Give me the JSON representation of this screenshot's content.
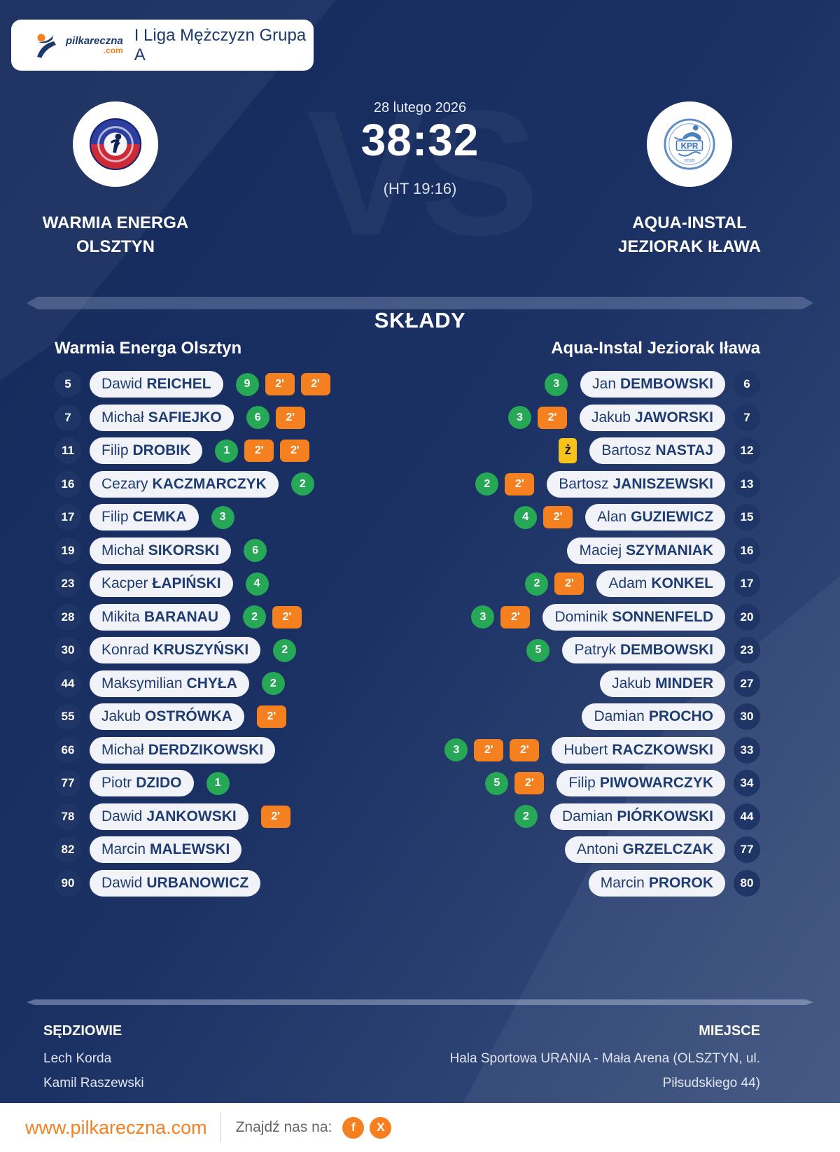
{
  "header": {
    "logo_text": "pilkareczna",
    "logo_tld": ".com",
    "league": "I Liga Mężczyzn Grupa A"
  },
  "match": {
    "date": "28 lutego 2026",
    "score": "38:32",
    "halftime": "(HT 19:16)",
    "vs": "VS",
    "home": {
      "name_line1": "WARMIA ENERGA",
      "name_line2": "OLSZTYN"
    },
    "away": {
      "name_line1": "AQUA-INSTAL",
      "name_line2": "JEZIORAK IŁAWA",
      "logo_text": "KPR",
      "logo_year": "2015"
    }
  },
  "rosters": {
    "title": "SKŁADY",
    "home": {
      "team": "Warmia Energa Olsztyn",
      "players": [
        {
          "number": "5",
          "first": "Dawid",
          "last": "REICHEL",
          "goals": "9",
          "suspensions": 2,
          "yellow": false
        },
        {
          "number": "7",
          "first": "Michał",
          "last": "SAFIEJKO",
          "goals": "6",
          "suspensions": 1,
          "yellow": false
        },
        {
          "number": "11",
          "first": "Filip",
          "last": "DROBIK",
          "goals": "1",
          "suspensions": 2,
          "yellow": false
        },
        {
          "number": "16",
          "first": "Cezary",
          "last": "KACZMARCZYK",
          "goals": "2",
          "suspensions": 0,
          "yellow": false
        },
        {
          "number": "17",
          "first": "Filip",
          "last": "CEMKA",
          "goals": "3",
          "suspensions": 0,
          "yellow": false
        },
        {
          "number": "19",
          "first": "Michał",
          "last": "SIKORSKI",
          "goals": "6",
          "suspensions": 0,
          "yellow": false
        },
        {
          "number": "23",
          "first": "Kacper",
          "last": "ŁAPIŃSKI",
          "goals": "4",
          "suspensions": 0,
          "yellow": false
        },
        {
          "number": "28",
          "first": "Mikita",
          "last": "BARANAU",
          "goals": "2",
          "suspensions": 1,
          "yellow": false
        },
        {
          "number": "30",
          "first": "Konrad",
          "last": "KRUSZYŃSKI",
          "goals": "2",
          "suspensions": 0,
          "yellow": false
        },
        {
          "number": "44",
          "first": "Maksymilian",
          "last": "CHYŁA",
          "goals": "2",
          "suspensions": 0,
          "yellow": false
        },
        {
          "number": "55",
          "first": "Jakub",
          "last": "OSTRÓWKA",
          "goals": null,
          "suspensions": 1,
          "yellow": false
        },
        {
          "number": "66",
          "first": "Michał",
          "last": "DERDZIKOWSKI",
          "goals": null,
          "suspensions": 0,
          "yellow": false
        },
        {
          "number": "77",
          "first": "Piotr",
          "last": "DZIDO",
          "goals": "1",
          "suspensions": 0,
          "yellow": false
        },
        {
          "number": "78",
          "first": "Dawid",
          "last": "JANKOWSKI",
          "goals": null,
          "suspensions": 1,
          "yellow": false
        },
        {
          "number": "82",
          "first": "Marcin",
          "last": "MALEWSKI",
          "goals": null,
          "suspensions": 0,
          "yellow": false
        },
        {
          "number": "90",
          "first": "Dawid",
          "last": "URBANOWICZ",
          "goals": null,
          "suspensions": 0,
          "yellow": false
        }
      ]
    },
    "away": {
      "team": "Aqua-Instal Jeziorak Iława",
      "players": [
        {
          "number": "6",
          "first": "Jan",
          "last": "DEMBOWSKI",
          "goals": "3",
          "suspensions": 0,
          "yellow": false
        },
        {
          "number": "7",
          "first": "Jakub",
          "last": "JAWORSKI",
          "goals": "3",
          "suspensions": 1,
          "yellow": false
        },
        {
          "number": "12",
          "first": "Bartosz",
          "last": "NASTAJ",
          "goals": null,
          "suspensions": 0,
          "yellow": true
        },
        {
          "number": "13",
          "first": "Bartosz",
          "last": "JANISZEWSKI",
          "goals": "2",
          "suspensions": 1,
          "yellow": false
        },
        {
          "number": "15",
          "first": "Alan",
          "last": "GUZIEWICZ",
          "goals": "4",
          "suspensions": 1,
          "yellow": false
        },
        {
          "number": "16",
          "first": "Maciej",
          "last": "SZYMANIAK",
          "goals": null,
          "suspensions": 0,
          "yellow": false
        },
        {
          "number": "17",
          "first": "Adam",
          "last": "KONKEL",
          "goals": "2",
          "suspensions": 1,
          "yellow": false
        },
        {
          "number": "20",
          "first": "Dominik",
          "last": "SONNENFELD",
          "goals": "3",
          "suspensions": 1,
          "yellow": false
        },
        {
          "number": "23",
          "first": "Patryk",
          "last": "DEMBOWSKI",
          "goals": "5",
          "suspensions": 0,
          "yellow": false
        },
        {
          "number": "27",
          "first": "Jakub",
          "last": "MINDER",
          "goals": null,
          "suspensions": 0,
          "yellow": false
        },
        {
          "number": "30",
          "first": "Damian",
          "last": "PROCHO",
          "goals": null,
          "suspensions": 0,
          "yellow": false
        },
        {
          "number": "33",
          "first": "Hubert",
          "last": "RACZKOWSKI",
          "goals": "3",
          "suspensions": 2,
          "yellow": false
        },
        {
          "number": "34",
          "first": "Filip",
          "last": "PIWOWARCZYK",
          "goals": "5",
          "suspensions": 1,
          "yellow": false
        },
        {
          "number": "44",
          "first": "Damian",
          "last": "PIÓRKOWSKI",
          "goals": "2",
          "suspensions": 0,
          "yellow": false
        },
        {
          "number": "77",
          "first": "Antoni",
          "last": "GRZELCZAK",
          "goals": null,
          "suspensions": 0,
          "yellow": false
        },
        {
          "number": "80",
          "first": "Marcin",
          "last": "PROROK",
          "goals": null,
          "suspensions": 0,
          "yellow": false
        }
      ]
    }
  },
  "badges": {
    "suspension_label": "2'",
    "yellow_label": "ż"
  },
  "officials": {
    "referees_label": "SĘDZIOWIE",
    "referees": [
      "Lech Korda",
      "Kamil Raszewski"
    ],
    "venue_label": "MIEJSCE",
    "venue_lines": [
      "Hala Sportowa URANIA - Mała Arena (OLSZTYN, ul.",
      "Piłsudskiego 44)"
    ]
  },
  "footer": {
    "website": "www.pilkareczna.com",
    "find_us_label": "Znajdź nas na:",
    "facebook_glyph": "f",
    "x_glyph": "X"
  },
  "colors": {
    "background_navy": "#1b3164",
    "accent_orange": "#f5801f",
    "goal_green": "#27a857",
    "yellow_card": "#f8c41c",
    "pill_text_navy": "#1e3c72"
  }
}
